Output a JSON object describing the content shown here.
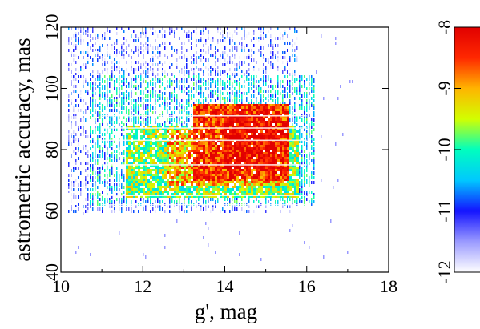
{
  "chart_data": {
    "type": "heatmap",
    "xlabel": "g', mag",
    "ylabel": "astrometric accuracy, mas",
    "xlim": [
      10,
      18
    ],
    "ylim": [
      40,
      120
    ],
    "xticks": [
      "10",
      "12",
      "14",
      "16",
      "18"
    ],
    "yticks": [
      "40",
      "60",
      "80",
      "100",
      "120"
    ],
    "grid": false,
    "colorbar": {
      "range": [
        -12,
        -8
      ],
      "ticks": [
        "-8",
        "-9",
        "-10",
        "-11",
        "-12"
      ],
      "colormap": [
        "#ffffff",
        "#9a9aff",
        "#1414ff",
        "#00c8ff",
        "#00ffbe",
        "#d2ff00",
        "#ffb400",
        "#ff2800",
        "#e10000"
      ]
    },
    "density_regions": [
      {
        "g_min": 10.2,
        "g_max": 15.8,
        "acc_min": 60,
        "acc_max": 120,
        "level": -11.3
      },
      {
        "g_min": 10.7,
        "g_max": 16.2,
        "acc_min": 62,
        "acc_max": 104,
        "level": -10.4
      },
      {
        "g_min": 11.6,
        "g_max": 15.8,
        "acc_min": 64,
        "acc_max": 88,
        "level": -9.7
      },
      {
        "g_min": 12.6,
        "g_max": 15.5,
        "acc_min": 68,
        "acc_max": 86,
        "level": -9.1
      },
      {
        "g_min": 13.2,
        "g_max": 15.6,
        "acc_min": 70,
        "acc_max": 95,
        "level": -8.4
      },
      {
        "g_min": 14.0,
        "g_max": 15.3,
        "acc_min": 74,
        "acc_max": 92,
        "level": -8.1
      }
    ],
    "horizontal_bands_mas": [
      62,
      65,
      75,
      83,
      87,
      91
    ]
  }
}
